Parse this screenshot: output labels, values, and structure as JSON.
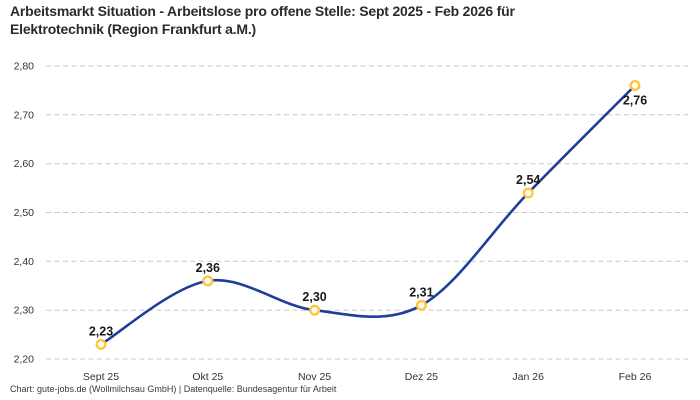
{
  "header": {
    "title_lines": [
      "Arbeitsmarkt Situation - Arbeitslose pro offene Stelle: Sept 2025 - Feb 2026 für",
      "Elektrotechnik (Region Frankfurt a.M.)"
    ]
  },
  "chart_data": {
    "type": "line",
    "title": "Arbeitsmarkt Situation - Arbeitslose pro offene Stelle: Sept 2025 - Feb 2026 für Elektrotechnik (Region Frankfurt a.M.)",
    "categories": [
      "Sept 25",
      "Okt 25",
      "Nov 25",
      "Dez 25",
      "Jan 26",
      "Feb 26"
    ],
    "values": [
      2.23,
      2.36,
      2.3,
      2.31,
      2.54,
      2.76
    ],
    "point_labels": [
      "2,23",
      "2,36",
      "2,30",
      "2,31",
      "2,54",
      "2,76"
    ],
    "y_ticks": [
      "2,20",
      "2,30",
      "2,40",
      "2,50",
      "2,60",
      "2,70",
      "2,80"
    ],
    "ylim": [
      2.2,
      2.8
    ],
    "xlabel": "",
    "ylabel": "",
    "legend": "none",
    "grid": "horizontal-dashed",
    "curve": "smooth",
    "marker_style": "open-circle",
    "last_label_position": "below",
    "colors": {
      "line": "#1f3d99",
      "marker_ring": "#ffc63c",
      "marker_fill": "#ffffff",
      "grid": "#c9c9c9",
      "axis_text": "#333333",
      "point_label_text": "#1a1a1a"
    }
  },
  "footer": {
    "credit": "Chart: gute-jobs.de (Wollmilchsau GmbH) | Datenquelle: Bundesagentur für Arbeit"
  }
}
